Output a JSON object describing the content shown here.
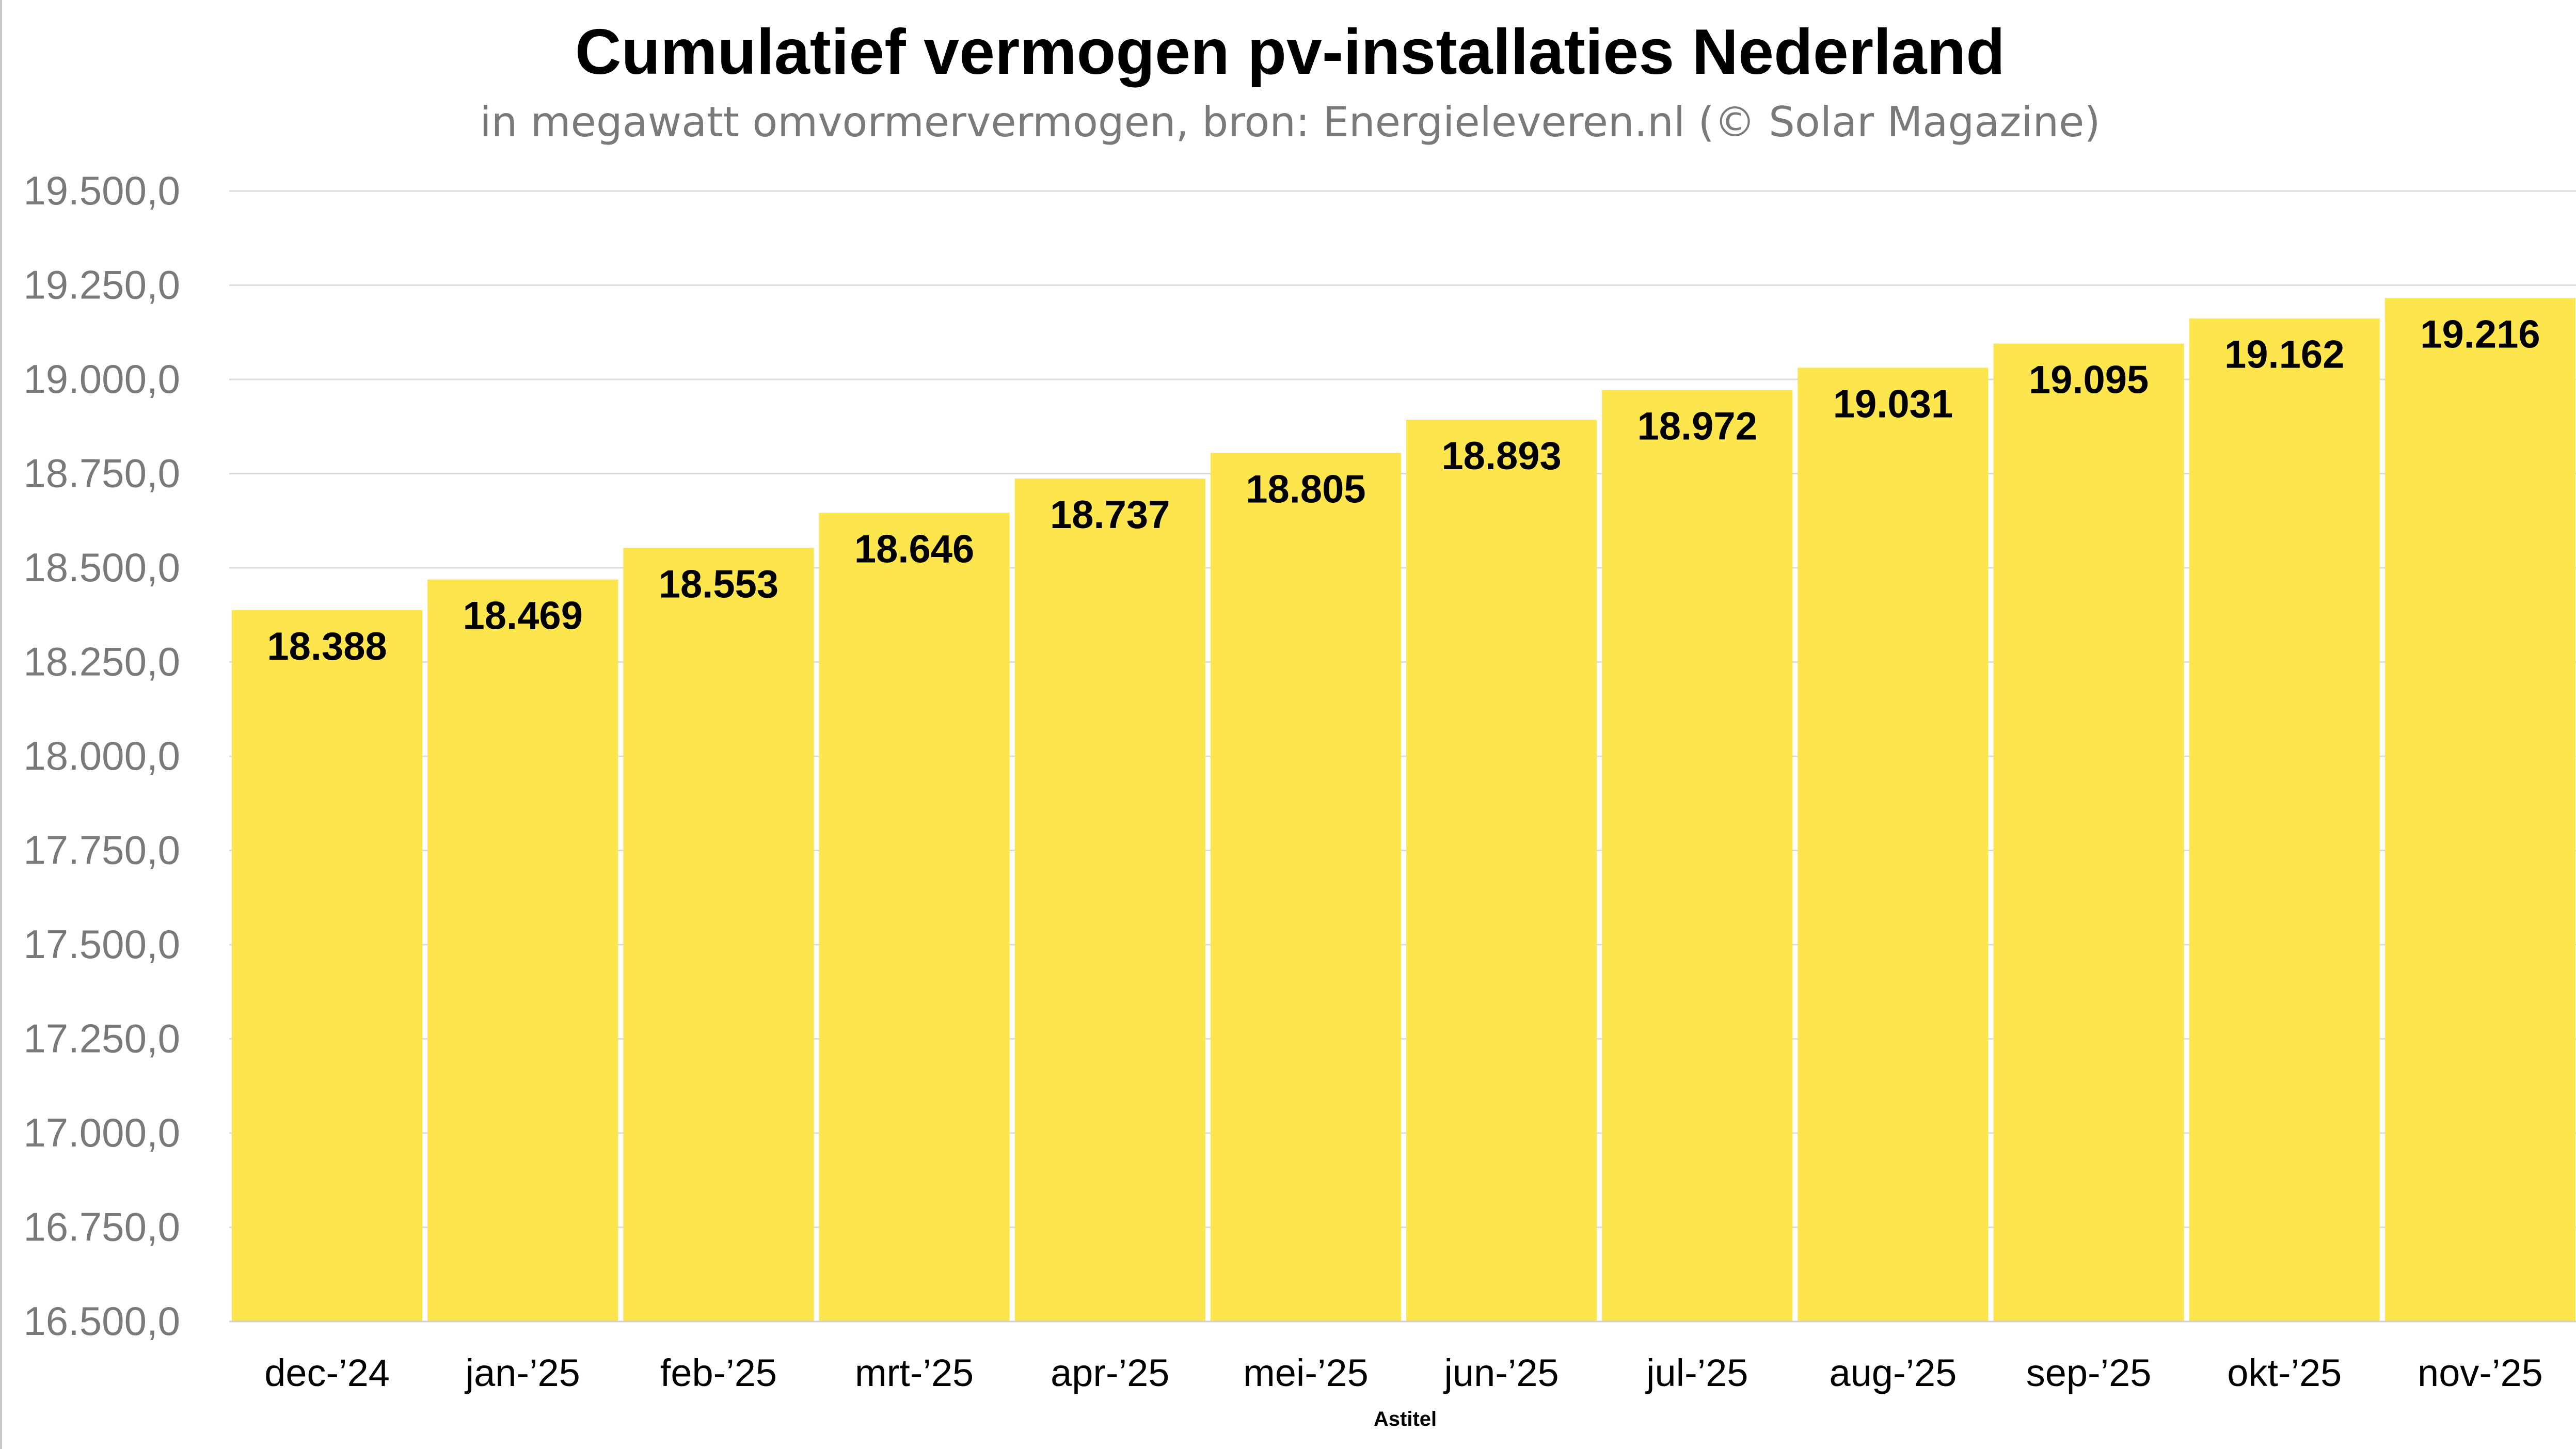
{
  "chart_data": {
    "type": "bar",
    "title": "Cumulatief vermogen pv-installaties Nederland",
    "subtitle": "in megawatt omvormervermogen, bron: Energieleveren.nl (© Solar Magazine)",
    "xlabel": "Astitel",
    "ylabel": "",
    "categories": [
      "dec-’24",
      "jan-’25",
      "feb-’25",
      "mrt-’25",
      "apr-’25",
      "mei-’25",
      "jun-’25",
      "jul-’25",
      "aug-’25",
      "sep-’25",
      "okt-’25",
      "nov-’25"
    ],
    "values": [
      18388,
      18469,
      18553,
      18646,
      18737,
      18805,
      18893,
      18972,
      19031,
      19095,
      19162,
      19216
    ],
    "data_labels": [
      "18.388",
      "18.469",
      "18.553",
      "18.646",
      "18.737",
      "18.805",
      "18.893",
      "18.972",
      "19.031",
      "19.095",
      "19.162",
      "19.216"
    ],
    "ylim": [
      16500,
      19500
    ],
    "yticks": [
      16500,
      16750,
      17000,
      17250,
      17500,
      17750,
      18000,
      18250,
      18500,
      18750,
      19000,
      19250,
      19500
    ],
    "ytick_labels": [
      "16.500,0",
      "16.750,0",
      "17.000,0",
      "17.250,0",
      "17.500,0",
      "17.750,0",
      "18.000,0",
      "18.250,0",
      "18.500,0",
      "18.750,0",
      "19.000,0",
      "19.250,0",
      "19.500,0"
    ],
    "grid": true,
    "legend": "none",
    "colors": {
      "bar": "#FDE54E",
      "grid": "#dcdcdc",
      "tick_text": "#7a7a7a",
      "label_text": "#000000"
    }
  }
}
